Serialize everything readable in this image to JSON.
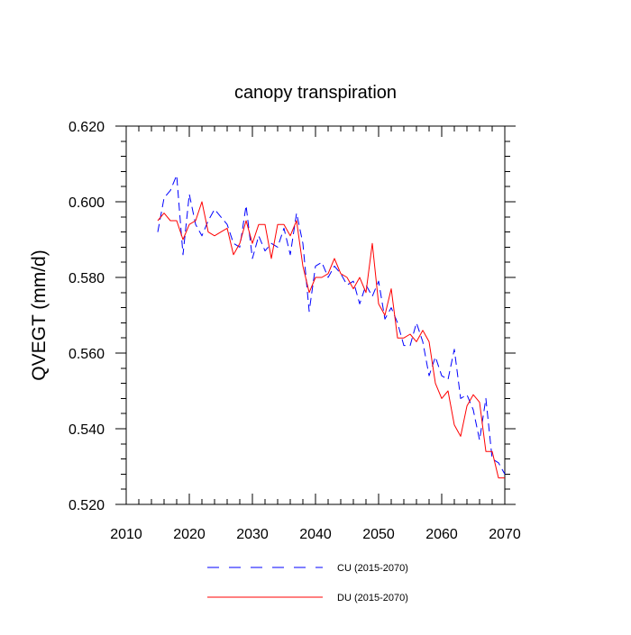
{
  "chart_data": {
    "type": "line",
    "title": "canopy transpiration",
    "xlabel": "",
    "ylabel": "QVEGT  (mm/d)",
    "xlim": [
      2010,
      2070
    ],
    "ylim": [
      0.52,
      0.62
    ],
    "x_ticks": [
      2010,
      2020,
      2030,
      2040,
      2050,
      2060,
      2070
    ],
    "x_tick_labels": [
      "2010",
      "2020",
      "2030",
      "2040",
      "2050",
      "2060",
      "2070"
    ],
    "y_ticks": [
      0.52,
      0.54,
      0.56,
      0.58,
      0.6,
      0.62
    ],
    "y_tick_labels": [
      "0.520",
      "0.540",
      "0.560",
      "0.580",
      "0.600",
      "0.620"
    ],
    "grid": false,
    "legend_position": "bottom-center",
    "x": [
      2015,
      2016,
      2017,
      2018,
      2019,
      2020,
      2021,
      2022,
      2023,
      2024,
      2025,
      2026,
      2027,
      2028,
      2029,
      2030,
      2031,
      2032,
      2033,
      2034,
      2035,
      2036,
      2037,
      2038,
      2039,
      2040,
      2041,
      2042,
      2043,
      2044,
      2045,
      2046,
      2047,
      2048,
      2049,
      2050,
      2051,
      2052,
      2053,
      2054,
      2055,
      2056,
      2057,
      2058,
      2059,
      2060,
      2061,
      2062,
      2063,
      2064,
      2065,
      2066,
      2067,
      2068,
      2069,
      2070
    ],
    "series": [
      {
        "name": "CU (2015-2070)",
        "color": "#0000ff",
        "dash": "dashed",
        "values": [
          0.592,
          0.601,
          0.603,
          0.607,
          0.586,
          0.602,
          0.594,
          0.591,
          0.595,
          0.598,
          0.596,
          0.594,
          0.589,
          0.588,
          0.599,
          0.585,
          0.591,
          0.587,
          0.589,
          0.588,
          0.593,
          0.586,
          0.597,
          0.589,
          0.571,
          0.583,
          0.584,
          0.58,
          0.583,
          0.581,
          0.578,
          0.579,
          0.573,
          0.578,
          0.575,
          0.579,
          0.569,
          0.572,
          0.568,
          0.562,
          0.562,
          0.568,
          0.563,
          0.554,
          0.559,
          0.554,
          0.553,
          0.561,
          0.548,
          0.549,
          0.545,
          0.537,
          0.548,
          0.532,
          0.531,
          0.528
        ]
      },
      {
        "name": "DU (2015-2070)",
        "color": "#ff0000",
        "dash": "solid",
        "values": [
          0.595,
          0.597,
          0.595,
          0.595,
          0.59,
          0.594,
          0.595,
          0.6,
          0.592,
          0.591,
          0.592,
          0.593,
          0.586,
          0.589,
          0.595,
          0.589,
          0.594,
          0.594,
          0.585,
          0.594,
          0.594,
          0.591,
          0.595,
          0.583,
          0.576,
          0.58,
          0.58,
          0.581,
          0.585,
          0.581,
          0.58,
          0.577,
          0.58,
          0.576,
          0.589,
          0.573,
          0.57,
          0.577,
          0.564,
          0.564,
          0.565,
          0.563,
          0.566,
          0.563,
          0.552,
          0.548,
          0.55,
          0.541,
          0.538,
          0.546,
          0.549,
          0.547,
          0.534,
          0.534,
          0.527,
          0.527
        ]
      }
    ]
  }
}
